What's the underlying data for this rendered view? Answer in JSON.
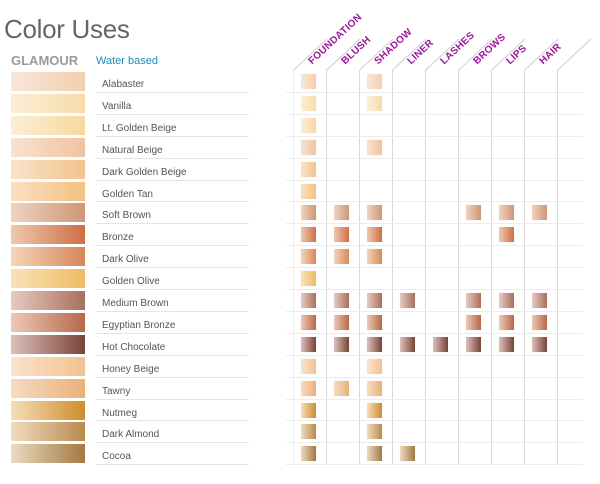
{
  "title": "Color Uses",
  "brand": "GLAMOUR",
  "subbrand": "Water based",
  "columns": [
    "FOUNDATION",
    "BLUSH",
    "SHADOW",
    "LINER",
    "LASHES",
    "BROWS",
    "LIPS",
    "HAIR"
  ],
  "colors": {
    "column_header": "#a0169a",
    "brand": "#9a9a9a",
    "subbrand": "#1a8fc0"
  },
  "shades": [
    {
      "name": "Alabaster",
      "swatch": [
        "#f7e7d9",
        "#f3cfac"
      ],
      "uses": [
        1,
        0,
        1,
        0,
        0,
        0,
        0,
        0
      ]
    },
    {
      "name": "Vanilla",
      "swatch": [
        "#fbefd8",
        "#f7dca8"
      ],
      "uses": [
        1,
        0,
        1,
        0,
        0,
        0,
        0,
        0
      ]
    },
    {
      "name": "Lt. Golden Beige",
      "swatch": [
        "#fbeed6",
        "#f7d9a0"
      ],
      "uses": [
        1,
        0,
        0,
        0,
        0,
        0,
        0,
        0
      ]
    },
    {
      "name": "Natural Beige",
      "swatch": [
        "#f8e2d3",
        "#f0c3a0"
      ],
      "uses": [
        1,
        0,
        1,
        0,
        0,
        0,
        0,
        0
      ]
    },
    {
      "name": "Dark Golden Beige",
      "swatch": [
        "#f9e3cb",
        "#f2c48b"
      ],
      "uses": [
        1,
        0,
        0,
        0,
        0,
        0,
        0,
        0
      ]
    },
    {
      "name": "Golden Tan",
      "swatch": [
        "#fae0c0",
        "#f3c183"
      ],
      "uses": [
        1,
        0,
        0,
        0,
        0,
        0,
        0,
        0
      ]
    },
    {
      "name": "Soft Brown",
      "swatch": [
        "#efd3c0",
        "#cf9675"
      ],
      "uses": [
        1,
        1,
        1,
        0,
        0,
        1,
        1,
        1
      ]
    },
    {
      "name": "Bronze",
      "swatch": [
        "#f0c8ae",
        "#cd6f45"
      ],
      "uses": [
        1,
        1,
        1,
        0,
        0,
        0,
        1,
        0
      ]
    },
    {
      "name": "Dark Olive",
      "swatch": [
        "#f4d5b8",
        "#d7875a"
      ],
      "uses": [
        1,
        1,
        1,
        0,
        0,
        0,
        0,
        0
      ]
    },
    {
      "name": "Golden Olive",
      "swatch": [
        "#f9e2b8",
        "#f0bb63"
      ],
      "uses": [
        1,
        0,
        0,
        0,
        0,
        0,
        0,
        0
      ]
    },
    {
      "name": "Medium Brown",
      "swatch": [
        "#e8cac0",
        "#a8705e"
      ],
      "uses": [
        1,
        1,
        1,
        1,
        0,
        1,
        1,
        1
      ]
    },
    {
      "name": "Egyptian Bronze",
      "swatch": [
        "#edc9b6",
        "#b6684a"
      ],
      "uses": [
        1,
        1,
        1,
        0,
        0,
        1,
        1,
        1
      ]
    },
    {
      "name": "Hot Chocolate",
      "swatch": [
        "#dcc1bb",
        "#7a4438"
      ],
      "uses": [
        1,
        1,
        1,
        1,
        1,
        1,
        1,
        1
      ]
    },
    {
      "name": "Honey Beige",
      "swatch": [
        "#fae3cd",
        "#f2c192"
      ],
      "uses": [
        1,
        0,
        1,
        0,
        0,
        0,
        0,
        0
      ]
    },
    {
      "name": "Tawny",
      "swatch": [
        "#f7dcc2",
        "#eab07a"
      ],
      "uses": [
        1,
        1,
        1,
        0,
        0,
        0,
        0,
        0
      ]
    },
    {
      "name": "Nutmeg",
      "swatch": [
        "#f6dfb9",
        "#cf8c2d"
      ],
      "uses": [
        1,
        0,
        1,
        0,
        0,
        0,
        0,
        0
      ]
    },
    {
      "name": "Dark Almond",
      "swatch": [
        "#f1dcc0",
        "#b98a4e"
      ],
      "uses": [
        1,
        0,
        1,
        0,
        0,
        0,
        0,
        0
      ]
    },
    {
      "name": "Cocoa",
      "swatch": [
        "#ecdac4",
        "#a3793f"
      ],
      "uses": [
        1,
        0,
        1,
        1,
        0,
        0,
        0,
        0
      ]
    }
  ]
}
